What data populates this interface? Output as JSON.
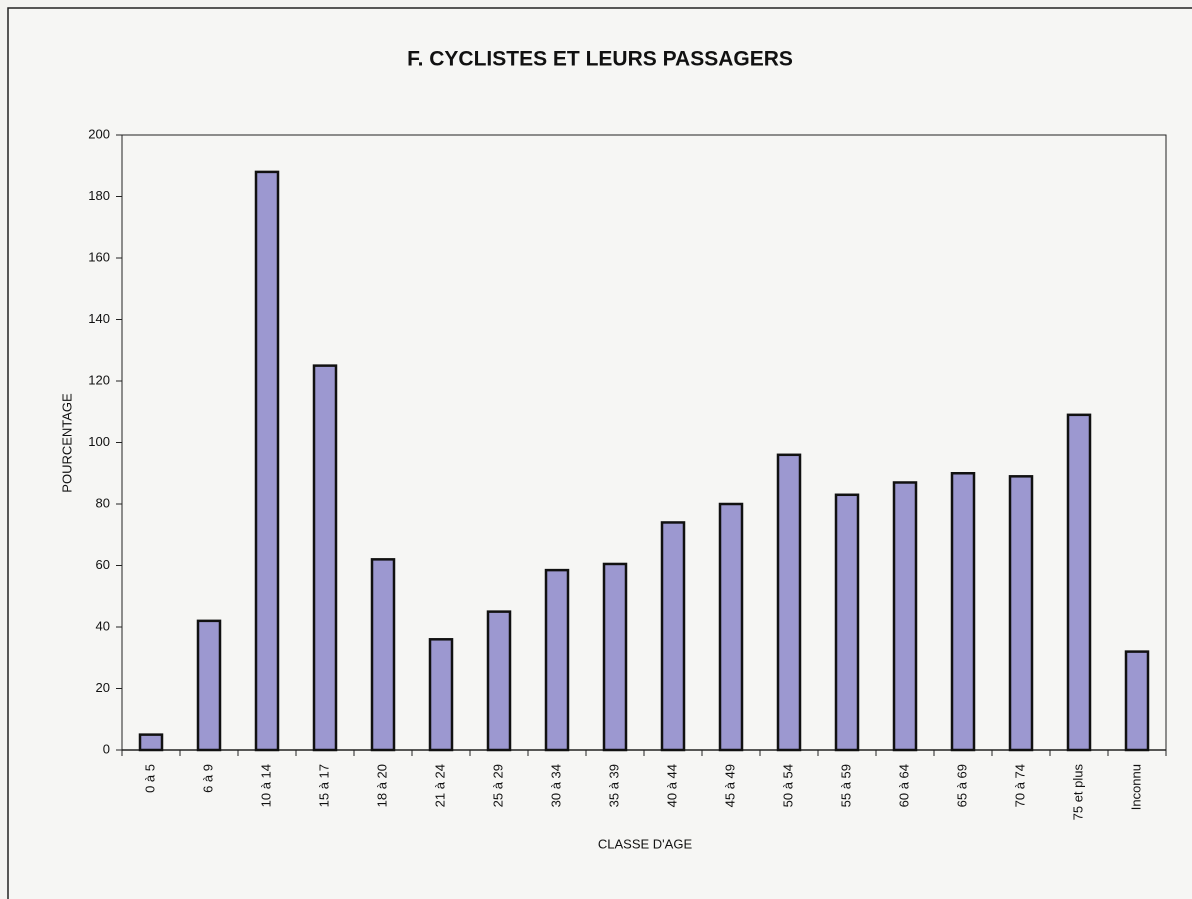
{
  "chart_data": {
    "type": "bar",
    "title": "F. CYCLISTES ET LEURS PASSAGERS",
    "x_label": "CLASSE D'AGE",
    "y_label": "POURCENTAGE",
    "categories": [
      "0 à 5",
      "6 à 9",
      "10 à 14",
      "15 à 17",
      "18 à 20",
      "21 à 24",
      "25 à 29",
      "30 à 34",
      "35 à 39",
      "40 à 44",
      "45 à 49",
      "50 à 54",
      "55 à 59",
      "60 à 64",
      "65 à 69",
      "70 à 74",
      "75 et plus",
      "Inconnu"
    ],
    "values": [
      5,
      42,
      188,
      125,
      62,
      36,
      45,
      58.5,
      60.5,
      74,
      80,
      96,
      83,
      87,
      90,
      89,
      109,
      32
    ],
    "color": "#9c98d0",
    "ylim": [
      0,
      200
    ],
    "yticks": [
      0,
      20,
      40,
      60,
      80,
      100,
      120,
      140,
      160,
      180,
      200
    ]
  }
}
